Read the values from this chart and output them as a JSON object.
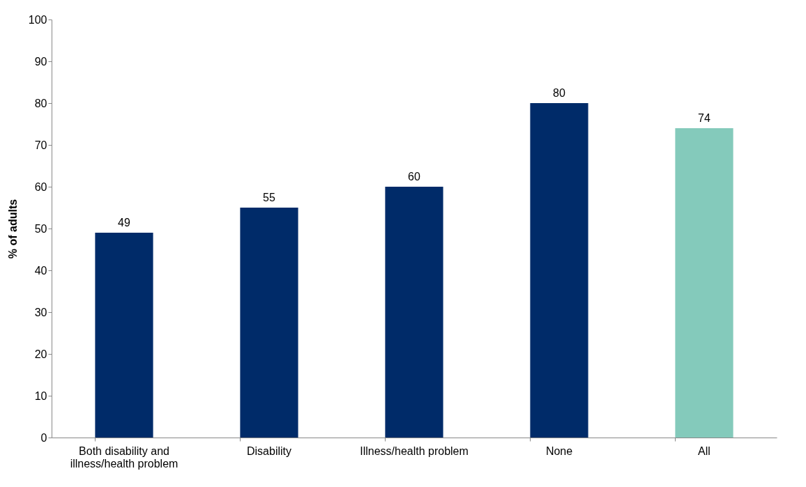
{
  "chart_data": {
    "type": "bar",
    "ylabel": "% of adults",
    "categories": [
      "Both disability and illness/health problem",
      "Disability",
      "Illness/health problem",
      "None",
      "All"
    ],
    "values": [
      49,
      55,
      60,
      80,
      74
    ],
    "colors": [
      "#002b69",
      "#002b69",
      "#002b69",
      "#002b69",
      "#84cabb"
    ],
    "ylim": [
      0,
      100
    ],
    "yticks": [
      0,
      10,
      20,
      30,
      40,
      50,
      60,
      70,
      80,
      90,
      100
    ],
    "data_labels": true,
    "grid": false
  }
}
